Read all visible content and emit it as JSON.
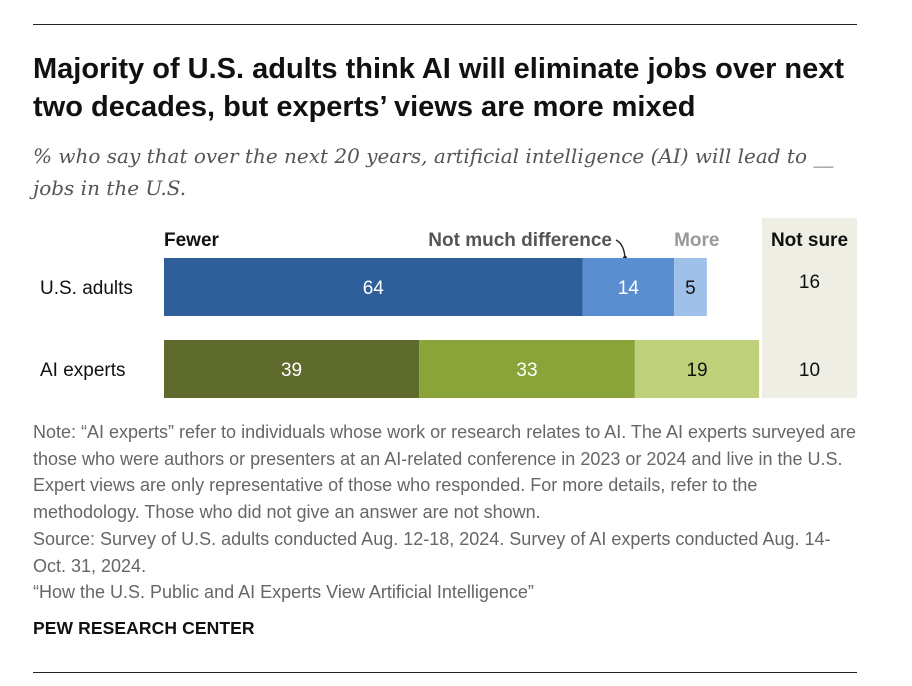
{
  "title": "Majority of U.S. adults think AI will eliminate jobs over next two decades, but experts’ views are more mixed",
  "subtitle": "% who say that over the next 20 years, artificial intelligence (AI) will lead to __ jobs in the U.S.",
  "chart_data": {
    "type": "bar",
    "orientation": "horizontal",
    "stacked": true,
    "categories": [
      "U.S. adults",
      "AI experts"
    ],
    "series": [
      {
        "name": "Fewer",
        "values": [
          64,
          39
        ],
        "colors": [
          "#2e5f9b",
          "#5f6b2c"
        ]
      },
      {
        "name": "Not much difference",
        "values": [
          14,
          33
        ],
        "colors": [
          "#5b8ed0",
          "#8ba43a"
        ]
      },
      {
        "name": "More",
        "values": [
          5,
          19
        ],
        "colors": [
          "#9fc0e8",
          "#bfd07a"
        ]
      }
    ],
    "not_sure": {
      "name": "Not sure",
      "values": [
        16,
        10
      ],
      "background": "#eeeee4"
    },
    "label_colors": {
      "fewer": "#111111",
      "not_much": "#555555",
      "more": "#999999",
      "not_sure": "#111111"
    }
  },
  "notes": {
    "note": "Note: “AI experts” refer to individuals whose work or research relates to AI. The AI experts surveyed are those who were authors or presenters at an AI-related conference in 2023 or 2024 and live in the U.S. Expert views are only representative of those who responded. For more details, refer to the methodology. Those who did not give an answer are not shown.",
    "source": "Source: Survey of U.S. adults conducted Aug. 12-18, 2024. Survey of AI experts conducted Aug. 14-Oct. 31, 2024.",
    "report": "“How the U.S. Public and AI Experts View Artificial Intelligence”"
  },
  "brand": "PEW RESEARCH CENTER"
}
